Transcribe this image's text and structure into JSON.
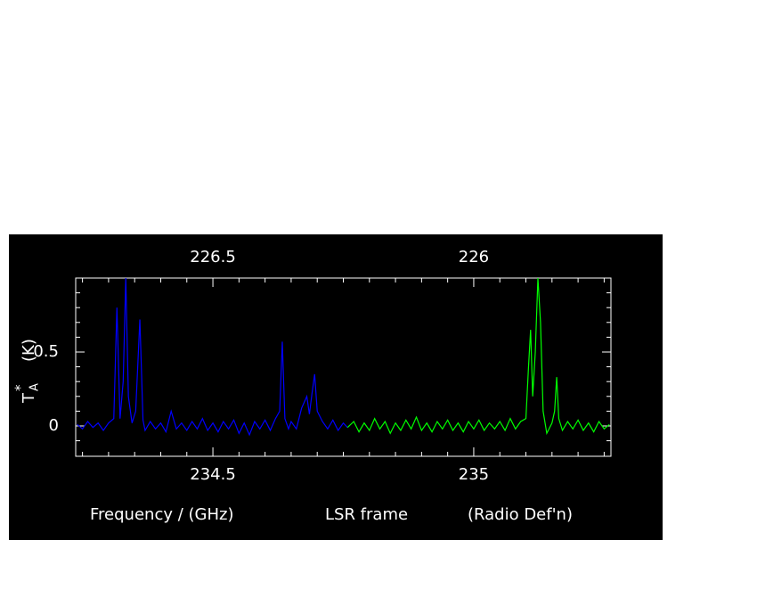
{
  "chart_data": {
    "type": "line",
    "xlim": [
      234.237,
      235.263
    ],
    "xticks": [
      234.5,
      235
    ],
    "xminor_ticks": [
      234.25,
      234.3,
      234.35,
      234.4,
      234.45,
      234.55,
      234.6,
      234.65,
      234.7,
      234.75,
      234.8,
      234.85,
      234.9,
      234.95,
      235.05,
      235.1,
      235.15,
      235.2,
      235.25
    ],
    "x2lim": [
      226.763,
      225.737
    ],
    "x2ticks": [
      226.5,
      226
    ],
    "x2minor_ticks": [
      226.75,
      226.7,
      226.65,
      226.6,
      226.55,
      226.45,
      226.4,
      226.35,
      226.3,
      226.25,
      226.2,
      226.15,
      226.1,
      226.05,
      225.95,
      225.9,
      225.85,
      225.8,
      225.75
    ],
    "ylim": [
      -0.205,
      1.0
    ],
    "yticks": [
      0,
      0.5
    ],
    "yminor_ticks": [
      -0.1,
      0.1,
      0.2,
      0.3,
      0.4,
      0.6,
      0.7,
      0.8,
      0.9
    ],
    "grid": false,
    "y_label": {
      "main": "T",
      "subscript": "A",
      "superscript": "*",
      "unit": "(K)"
    },
    "x_label": [
      "Frequency / (GHz)",
      "LSR frame",
      "(Radio Def'n)"
    ],
    "series": [
      {
        "color": "#0000ff",
        "x": [
          234.24,
          234.25,
          234.26,
          234.27,
          234.28,
          234.29,
          234.3,
          234.31,
          234.316,
          234.322,
          234.328,
          234.333,
          234.338,
          234.345,
          234.352,
          234.36,
          234.366,
          234.37,
          234.38,
          234.39,
          234.4,
          234.41,
          234.42,
          234.43,
          234.44,
          234.45,
          234.46,
          234.47,
          234.48,
          234.49,
          234.5,
          234.51,
          234.52,
          234.53,
          234.54,
          234.55,
          234.56,
          234.57,
          234.58,
          234.59,
          234.6,
          234.61,
          234.62,
          234.628,
          234.633,
          234.638,
          234.645,
          234.65,
          234.66,
          234.67,
          234.68,
          234.685,
          234.69,
          234.695,
          234.7,
          234.71,
          234.72,
          234.73,
          234.74,
          234.75,
          234.758
        ],
        "values": [
          0.01,
          -0.02,
          0.03,
          -0.01,
          0.02,
          -0.03,
          0.02,
          0.05,
          0.8,
          0.05,
          0.3,
          1.0,
          0.2,
          0.02,
          0.1,
          0.72,
          0.04,
          -0.03,
          0.03,
          -0.02,
          0.02,
          -0.04,
          0.1,
          -0.02,
          0.02,
          -0.03,
          0.03,
          -0.02,
          0.05,
          -0.03,
          0.02,
          -0.04,
          0.03,
          -0.02,
          0.04,
          -0.05,
          0.02,
          -0.06,
          0.03,
          -0.02,
          0.04,
          -0.03,
          0.05,
          0.1,
          0.57,
          0.05,
          -0.02,
          0.03,
          -0.02,
          0.12,
          0.2,
          0.08,
          0.22,
          0.35,
          0.1,
          0.03,
          -0.02,
          0.04,
          -0.03,
          0.02,
          -0.01
        ]
      },
      {
        "color": "#00ff00",
        "x": [
          234.758,
          234.77,
          234.78,
          234.79,
          234.8,
          234.81,
          234.82,
          234.83,
          234.84,
          234.85,
          234.86,
          234.87,
          234.88,
          234.89,
          234.9,
          234.91,
          234.92,
          234.93,
          234.94,
          234.95,
          234.96,
          234.97,
          234.98,
          234.99,
          235.0,
          235.01,
          235.02,
          235.03,
          235.04,
          235.05,
          235.06,
          235.07,
          235.08,
          235.09,
          235.1,
          235.105,
          235.109,
          235.113,
          235.118,
          235.123,
          235.128,
          235.133,
          235.14,
          235.15,
          235.155,
          235.159,
          235.163,
          235.17,
          235.18,
          235.19,
          235.2,
          235.21,
          235.22,
          235.23,
          235.24,
          235.25,
          235.26
        ],
        "values": [
          -0.01,
          0.03,
          -0.04,
          0.02,
          -0.03,
          0.05,
          -0.02,
          0.03,
          -0.05,
          0.02,
          -0.03,
          0.04,
          -0.02,
          0.06,
          -0.03,
          0.02,
          -0.04,
          0.03,
          -0.02,
          0.04,
          -0.03,
          0.02,
          -0.04,
          0.03,
          -0.02,
          0.04,
          -0.03,
          0.02,
          -0.02,
          0.03,
          -0.03,
          0.05,
          -0.02,
          0.03,
          0.05,
          0.4,
          0.65,
          0.2,
          0.5,
          1.0,
          0.7,
          0.1,
          -0.05,
          0.02,
          0.1,
          0.33,
          0.05,
          -0.03,
          0.03,
          -0.02,
          0.04,
          -0.03,
          0.02,
          -0.04,
          0.03,
          -0.02,
          0.01
        ]
      }
    ]
  }
}
